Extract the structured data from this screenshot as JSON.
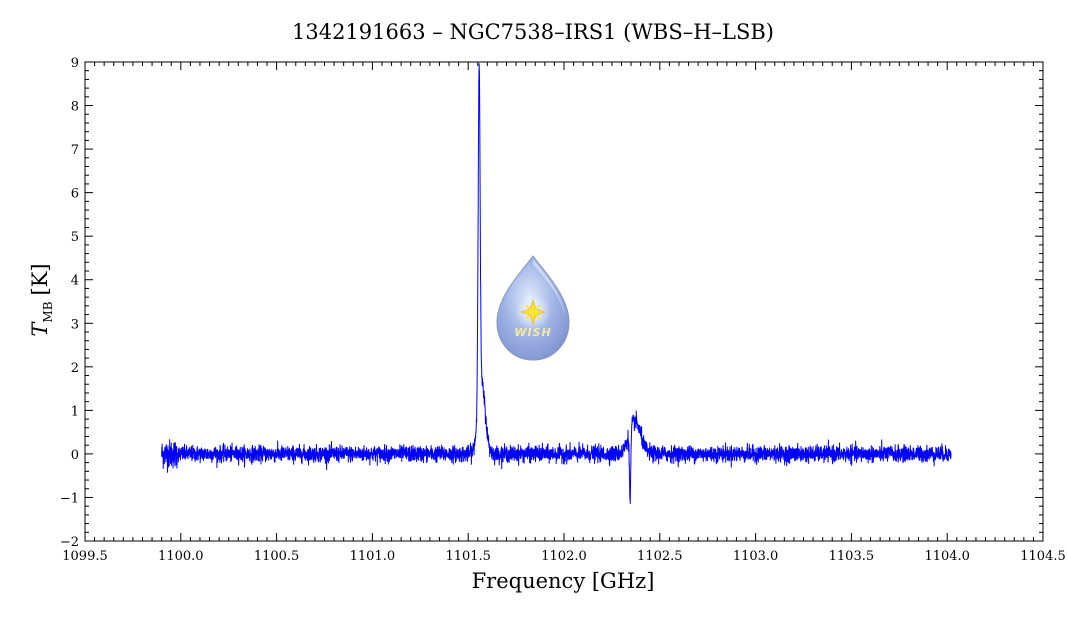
{
  "chart_data": {
    "type": "line",
    "title": "1342191663 – NGC7538–IRS1 (WBS–H–LSB)",
    "xlabel": "Frequency [GHz]",
    "ylabel_main": "T",
    "ylabel_sub": "MB",
    "ylabel_unit": "[K]",
    "xlim": [
      1099.5,
      1104.5
    ],
    "ylim": [
      -2,
      9
    ],
    "x_ticks": [
      {
        "value": 1099.5,
        "label": "1099.5"
      },
      {
        "value": 1100.0,
        "label": "1100.0"
      },
      {
        "value": 1100.5,
        "label": "1100.5"
      },
      {
        "value": 1101.0,
        "label": "1101.0"
      },
      {
        "value": 1101.5,
        "label": "1101.5"
      },
      {
        "value": 1102.0,
        "label": "1102.0"
      },
      {
        "value": 1102.5,
        "label": "1102.5"
      },
      {
        "value": 1103.0,
        "label": "1103.0"
      },
      {
        "value": 1103.5,
        "label": "1103.5"
      },
      {
        "value": 1104.0,
        "label": "1104.0"
      },
      {
        "value": 1104.5,
        "label": "1104.5"
      }
    ],
    "y_ticks": [
      {
        "value": -2,
        "label": "−2"
      },
      {
        "value": -1,
        "label": "−1"
      },
      {
        "value": 0,
        "label": "0"
      },
      {
        "value": 1,
        "label": "1"
      },
      {
        "value": 2,
        "label": "2"
      },
      {
        "value": 3,
        "label": "3"
      },
      {
        "value": 4,
        "label": "4"
      },
      {
        "value": 5,
        "label": "5"
      },
      {
        "value": 6,
        "label": "6"
      },
      {
        "value": 7,
        "label": "7"
      },
      {
        "value": 8,
        "label": "8"
      },
      {
        "value": 9,
        "label": "9"
      }
    ],
    "grid": false,
    "legend": "none",
    "series": [
      {
        "color": "#0000ff",
        "x_range": [
          1099.9,
          1104.02
        ],
        "noise_rms_K": 0.09,
        "features": [
          {
            "kind": "emission",
            "center_GHz": 1101.557,
            "peak_K": 7.7,
            "fwhm_GHz": 0.012
          },
          {
            "kind": "emission-wing",
            "center_GHz": 1101.57,
            "peak_K": 1.6,
            "fwhm_GHz": 0.045
          },
          {
            "kind": "emission",
            "center_GHz": 1102.37,
            "peak_K": 0.75,
            "fwhm_GHz": 0.07
          },
          {
            "kind": "absorption",
            "center_GHz": 1102.345,
            "peak_K": -1.65,
            "fwhm_GHz": 0.008
          }
        ]
      }
    ],
    "logo": {
      "text": "WISH",
      "icon": "water-drop-star-logo"
    }
  }
}
